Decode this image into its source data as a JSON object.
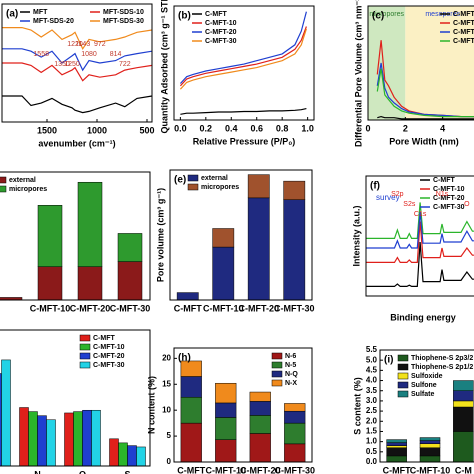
{
  "chart_data": [
    {
      "type": "line",
      "title": "(a)",
      "xlabel": "avenumber (cm⁻¹)",
      "xlim": [
        1950,
        450
      ],
      "ylim": [
        0,
        100
      ],
      "xticks": [
        1500,
        1000,
        500
      ],
      "x": [
        1950,
        1750,
        1660,
        1558,
        1450,
        1350,
        1250,
        1220,
        1143,
        1080,
        972,
        814,
        722,
        600,
        450
      ],
      "series": [
        {
          "name": "MFT",
          "color": "#000000",
          "values": [
            22,
            22,
            14,
            16,
            20,
            15,
            12,
            10,
            8,
            9,
            12,
            16,
            13,
            20,
            22
          ]
        },
        {
          "name": "MFT-SDS-10",
          "color": "#e0201b",
          "values": [
            50,
            50,
            48,
            42,
            48,
            40,
            44,
            46,
            35,
            40,
            38,
            40,
            44,
            46,
            48
          ]
        },
        {
          "name": "MFT-SDS-20",
          "color": "#1f3fd0",
          "values": [
            62,
            62,
            60,
            55,
            60,
            50,
            56,
            58,
            44,
            52,
            50,
            52,
            56,
            58,
            60
          ]
        },
        {
          "name": "MFT-SDS-30",
          "color": "#f08a1c",
          "values": [
            80,
            80,
            78,
            72,
            78,
            70,
            74,
            76,
            62,
            70,
            68,
            70,
            72,
            76,
            78
          ]
        }
      ],
      "legend": "upper left",
      "legend_columns": 2,
      "annotations": [
        {
          "label": "1143",
          "x": 1143
        },
        {
          "label": "1558",
          "x": 1558
        },
        {
          "label": "1350",
          "x": 1350
        },
        {
          "label": "972",
          "x": 972
        },
        {
          "label": "814",
          "x": 814
        },
        {
          "label": "1250",
          "x": 1250
        },
        {
          "label": "1220",
          "x": 1220
        },
        {
          "label": "1080",
          "x": 1080
        },
        {
          "label": "722",
          "x": 722
        }
      ]
    },
    {
      "type": "line",
      "title": "(b)",
      "xlabel": "Relative Pressure (P/P₀)",
      "ylabel": "Quantity Adsorbed (cm³ g⁻¹ STP)",
      "xlim": [
        -0.05,
        1.05
      ],
      "ylim": [
        0,
        100
      ],
      "xticks": [
        {
          "value": 0,
          "label": "0.0"
        },
        0.2,
        0.4,
        0.6,
        0.8,
        {
          "value": 1,
          "label": "1.0"
        }
      ],
      "x": [
        0,
        0.05,
        0.1,
        0.2,
        0.3,
        0.4,
        0.5,
        0.6,
        0.7,
        0.8,
        0.9,
        0.95,
        0.99
      ],
      "series": [
        {
          "name": "C-MFT",
          "color": "#000000",
          "values": [
            5,
            6,
            6,
            6.5,
            7,
            7,
            7.5,
            7.5,
            8,
            8,
            8.5,
            9,
            10
          ]
        },
        {
          "name": "C-MFT-10",
          "color": "#e0201b",
          "values": [
            30,
            36,
            38,
            41,
            43,
            45,
            47,
            49,
            52,
            55,
            62,
            70,
            82
          ]
        },
        {
          "name": "C-MFT-20",
          "color": "#1f3fd0",
          "values": [
            32,
            38,
            40,
            43,
            45,
            47,
            49,
            52,
            55,
            58,
            66,
            78,
            95
          ]
        },
        {
          "name": "C-MFT-30",
          "color": "#f08a1c",
          "values": [
            27,
            33,
            35,
            38,
            40,
            42,
            44,
            46,
            49,
            52,
            58,
            66,
            80
          ]
        }
      ],
      "legend": "upper left"
    },
    {
      "type": "line",
      "title": "(c)",
      "xlabel": "Pore Width (nm)",
      "ylabel": "Differential Pore Volume (cm³ nm⁻¹ g⁻¹)",
      "xlim": [
        0,
        6
      ],
      "ylim": [
        0,
        100
      ],
      "xticks": [
        0,
        2,
        4
      ],
      "regions": [
        {
          "label": "micropores",
          "range": [
            0,
            2
          ],
          "color": "#cfe8c0"
        },
        {
          "label": "mesopores",
          "range": [
            2,
            6
          ],
          "color": "#fbf0c4"
        }
      ],
      "x": [
        0.5,
        0.7,
        0.9,
        1.1,
        1.4,
        1.8,
        2.2,
        3,
        4,
        5,
        6
      ],
      "series": [
        {
          "name": "C-MFT",
          "color": "#000000",
          "values": [
            2,
            3,
            2,
            2,
            2,
            1,
            1,
            1,
            1,
            1,
            1
          ]
        },
        {
          "name": "C-MFT-10",
          "color": "#e0201b",
          "values": [
            40,
            70,
            35,
            30,
            20,
            12,
            8,
            5,
            4,
            3,
            3
          ]
        },
        {
          "name": "C-MFT-20",
          "color": "#1f3fd0",
          "values": [
            30,
            50,
            28,
            20,
            15,
            10,
            7,
            5,
            4,
            3,
            3
          ]
        },
        {
          "name": "C-MFT-30",
          "color": "#2bb52b",
          "values": [
            25,
            45,
            22,
            18,
            12,
            8,
            6,
            4,
            3,
            3,
            3
          ]
        }
      ],
      "legend": "upper right"
    },
    {
      "type": "stacked_bar",
      "categories": [
        null,
        "C-MFT-10",
        "C-MFT-20",
        "C-MFT-30"
      ],
      "ylim": [
        0,
        1
      ],
      "series": [
        {
          "name": "external",
          "color": "#8b1a1a",
          "values": [
            0.02,
            0.26,
            0.26,
            0.3
          ]
        },
        {
          "name": "micropores",
          "color": "#2e9a2e",
          "values": [
            0,
            0.48,
            0.66,
            0.22
          ]
        }
      ],
      "legend": "upper left"
    },
    {
      "type": "stacked_bar",
      "title": "(e)",
      "ylabel": "Pore volume (cm³ g⁻¹)",
      "categories": [
        "C-MFT",
        "C-MFT-10",
        "C-MFT-20",
        "C-MFT-30"
      ],
      "ylim": [
        0,
        1.4
      ],
      "series": [
        {
          "name": "external",
          "color": "#1f2a80",
          "values": [
            0.08,
            0.57,
            1.1,
            1.08
          ]
        },
        {
          "name": "micropores",
          "color": "#a0522d",
          "values": [
            0,
            0.2,
            0.25,
            0.2
          ]
        }
      ],
      "legend": "upper left"
    },
    {
      "type": "line",
      "title": "(f)",
      "subtitle": "survey",
      "xlabel": "Binding energy",
      "ylabel": "Intensity (a.u.)",
      "xlim": [
        0,
        600
      ],
      "ylim": [
        0,
        100
      ],
      "x": [
        0,
        100,
        150,
        165,
        180,
        215,
        228,
        240,
        270,
        285,
        300,
        350,
        390,
        400,
        410,
        500,
        531,
        560,
        600
      ],
      "series": [
        {
          "name": "C-MFT",
          "color": "#000000",
          "values": [
            8,
            8,
            8,
            10,
            8,
            8,
            9,
            8,
            8,
            45,
            12,
            12,
            12,
            22,
            13,
            13,
            20,
            14,
            14
          ]
        },
        {
          "name": "C-MFT-10",
          "color": "#e0201b",
          "values": [
            28,
            28,
            28,
            32,
            28,
            28,
            30,
            28,
            28,
            62,
            32,
            32,
            32,
            40,
            33,
            33,
            40,
            34,
            34
          ]
        },
        {
          "name": "C-MFT-20",
          "color": "#2bb52b",
          "values": [
            48,
            48,
            48,
            55,
            48,
            48,
            52,
            48,
            48,
            78,
            52,
            52,
            52,
            60,
            53,
            53,
            62,
            54,
            54
          ]
        },
        {
          "name": "C-MFT-30",
          "color": "#1f3fd0",
          "values": [
            40,
            40,
            40,
            46,
            40,
            40,
            43,
            40,
            40,
            70,
            44,
            44,
            44,
            52,
            45,
            45,
            54,
            46,
            46
          ]
        }
      ],
      "legend": "upper right",
      "annotations": [
        {
          "label": "S2p",
          "x": 165
        },
        {
          "label": "S2s",
          "x": 228
        },
        {
          "label": "C1s",
          "x": 285
        },
        {
          "label": "N1s",
          "x": 400
        },
        {
          "label": "O",
          "x": 531
        }
      ]
    },
    {
      "type": "grouped_bar",
      "categories": [
        null,
        "N",
        "O",
        "S"
      ],
      "ylim": [
        0,
        100
      ],
      "series": [
        {
          "name": "C-MFT",
          "color": "#e0201b",
          "values": [
            72,
            43,
            39,
            20
          ]
        },
        {
          "name": "C-MFT-10",
          "color": "#2bb52b",
          "values": [
            70,
            40,
            40,
            17
          ]
        },
        {
          "name": "C-MFT-20",
          "color": "#1f3fd0",
          "values": [
            68,
            37,
            41,
            15
          ]
        },
        {
          "name": "C-MFT-30",
          "color": "#22d3e6",
          "values": [
            78,
            34,
            41,
            14
          ]
        }
      ],
      "legend": "upper right"
    },
    {
      "type": "stacked_bar",
      "title": "(h)",
      "ylabel": "N content (%)",
      "categories": [
        "C-MFT",
        "C-MFT-10",
        "C-MFT-20",
        "C-MFT-30"
      ],
      "ylim": [
        0,
        22
      ],
      "yticks": [
        0,
        5,
        10,
        15,
        20
      ],
      "series": [
        {
          "name": "N-6",
          "color": "#a01818",
          "values": [
            7.5,
            4.3,
            5.5,
            3.5
          ]
        },
        {
          "name": "N-5",
          "color": "#2e7d2e",
          "values": [
            5,
            4.3,
            3.5,
            4
          ]
        },
        {
          "name": "N-Q",
          "color": "#1f2a80",
          "values": [
            4,
            2.8,
            2.7,
            2.3
          ]
        },
        {
          "name": "N-X",
          "color": "#f08a1c",
          "values": [
            3,
            3.8,
            1.8,
            1.5
          ]
        }
      ],
      "legend": "upper right"
    },
    {
      "type": "stacked_bar",
      "title": "(i)",
      "ylabel": "S content (%)",
      "categories": [
        "C-MFT",
        "C-MFT-10",
        "C-M"
      ],
      "ylim": [
        0,
        5.5
      ],
      "yticks": [
        {
          "value": 0,
          "label": "0.0"
        },
        0.5,
        {
          "value": 1,
          "label": "1.0"
        },
        1.5,
        {
          "value": 2,
          "label": "2.0"
        },
        2.5,
        {
          "value": 3,
          "label": "3.0"
        },
        3.5,
        {
          "value": 4,
          "label": "4.0"
        },
        4.5,
        {
          "value": 5,
          "label": "5.0"
        },
        5.5
      ],
      "series": [
        {
          "name": "Thiophene-S 2p3/2",
          "color": "#1e5a1e",
          "values": [
            0.3,
            0.3,
            1.5
          ]
        },
        {
          "name": "Thiophene-S 2p1/2",
          "color": "#111111",
          "values": [
            0.4,
            0.4,
            1.2
          ]
        },
        {
          "name": "Sulfoxide",
          "color": "#f2e21c",
          "values": [
            0.1,
            0.2,
            0.3
          ]
        },
        {
          "name": "Sulfone",
          "color": "#1f2a80",
          "values": [
            0.15,
            0.15,
            0.5
          ]
        },
        {
          "name": "Sulfate",
          "color": "#1a8080",
          "values": [
            0.15,
            0.15,
            0.5
          ]
        }
      ],
      "legend": "upper left"
    }
  ]
}
